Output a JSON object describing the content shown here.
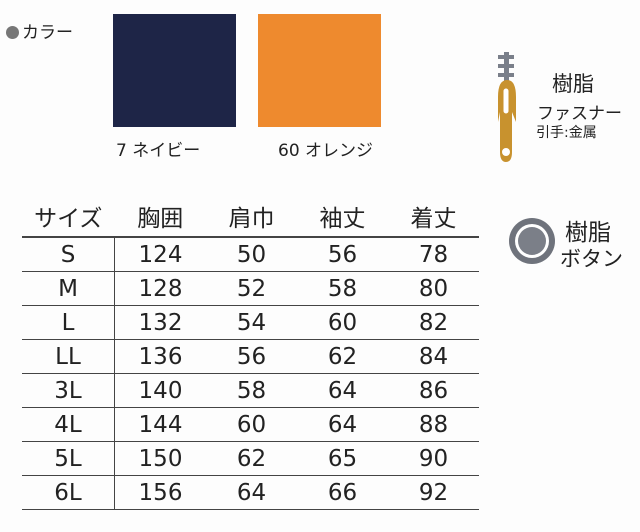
{
  "colors_section": {
    "label": "カラー",
    "swatches": [
      {
        "label": "7 ネイビー",
        "color": "#1e2547"
      },
      {
        "label": "60 オレンジ",
        "color": "#ee8a2e"
      }
    ]
  },
  "fastener": {
    "icon": "zipper-icon",
    "title": "樹脂",
    "subtitle": "ファスナー",
    "note": "引手:金属",
    "color": "#c8922e"
  },
  "button": {
    "icon": "button-icon",
    "title": "樹脂",
    "subtitle": "ボタン"
  },
  "size_table": {
    "headers": [
      "サイズ",
      "胸囲",
      "肩巾",
      "袖丈",
      "着丈"
    ],
    "rows": [
      [
        "S",
        "124",
        "50",
        "56",
        "78"
      ],
      [
        "M",
        "128",
        "52",
        "58",
        "80"
      ],
      [
        "L",
        "132",
        "54",
        "60",
        "82"
      ],
      [
        "LL",
        "136",
        "56",
        "62",
        "84"
      ],
      [
        "3L",
        "140",
        "58",
        "64",
        "86"
      ],
      [
        "4L",
        "144",
        "60",
        "64",
        "88"
      ],
      [
        "5L",
        "150",
        "62",
        "65",
        "90"
      ],
      [
        "6L",
        "156",
        "64",
        "66",
        "92"
      ]
    ]
  }
}
